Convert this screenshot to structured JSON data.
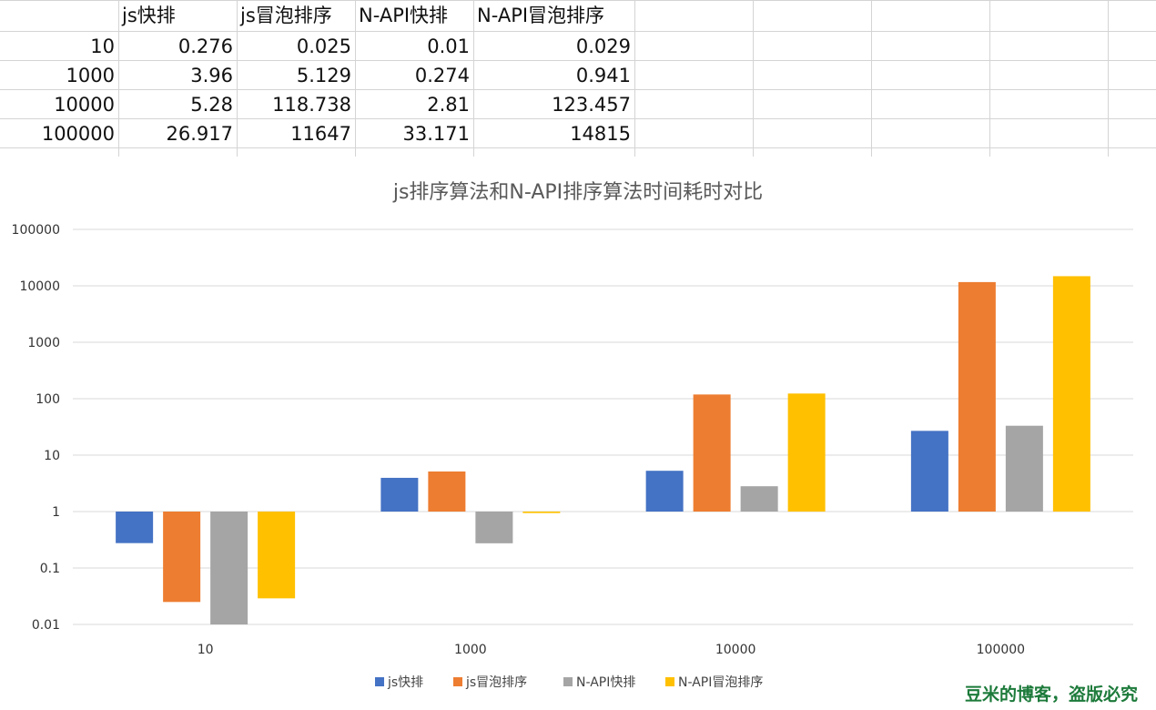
{
  "table": {
    "headers": [
      "",
      "js快排",
      "js冒泡排序",
      "N-API快排",
      "N-API冒泡排序"
    ],
    "rows": [
      [
        "10",
        "0.276",
        "0.025",
        "0.01",
        "0.029"
      ],
      [
        "1000",
        "3.96",
        "5.129",
        "0.274",
        "0.941"
      ],
      [
        "10000",
        "5.28",
        "118.738",
        "2.81",
        "123.457"
      ],
      [
        "100000",
        "26.917",
        "11647",
        "33.171",
        "14815"
      ]
    ]
  },
  "chart_data": {
    "type": "bar",
    "title": "js排序算法和N-API排序算法时间耗时对比",
    "categories": [
      "10",
      "1000",
      "10000",
      "100000"
    ],
    "y_scale": "log",
    "y_baseline": 1,
    "ylim": [
      0.01,
      100000
    ],
    "y_ticks": [
      "0.01",
      "0.1",
      "1",
      "10",
      "100",
      "1000",
      "10000",
      "100000"
    ],
    "grid": true,
    "legend_position": "bottom",
    "series": [
      {
        "name": "js快排",
        "color": "#4472c4",
        "values": [
          0.276,
          3.96,
          5.28,
          26.917
        ]
      },
      {
        "name": "js冒泡排序",
        "color": "#ed7d31",
        "values": [
          0.025,
          5.129,
          118.738,
          11647
        ]
      },
      {
        "name": "N-API快排",
        "color": "#a5a5a5",
        "values": [
          0.01,
          0.274,
          2.81,
          33.171
        ]
      },
      {
        "name": "N-API冒泡排序",
        "color": "#ffc000",
        "values": [
          0.029,
          0.941,
          123.457,
          14815
        ]
      }
    ]
  },
  "watermark": "豆米的博客，盗版必究"
}
